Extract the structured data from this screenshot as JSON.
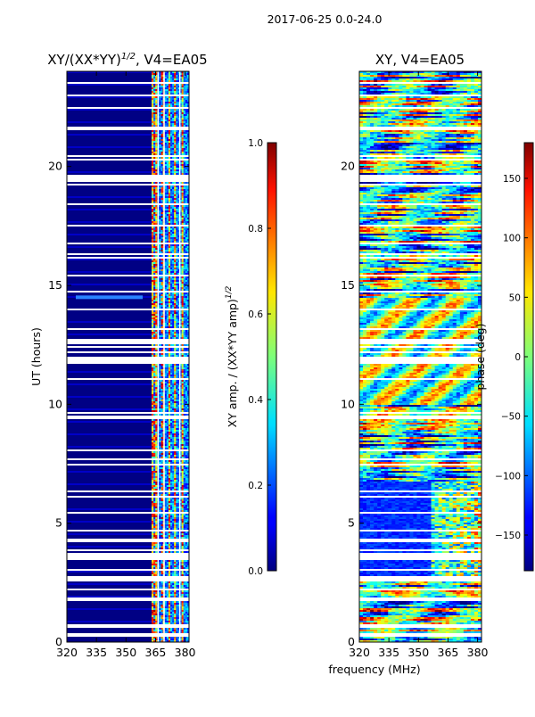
{
  "figure": {
    "suptitle": "2017-06-25 0.0-24.0",
    "xlabel": "frequency (MHz)"
  },
  "chart_data": [
    {
      "type": "heatmap",
      "title": "XY/(XX*YY)",
      "title_superscript": "1/2",
      "title_suffix": ", V4=EA05",
      "xlabel": "frequency (MHz)",
      "ylabel": "UT (hours)",
      "xlim": [
        320,
        382
      ],
      "ylim": [
        0,
        24
      ],
      "xticks": [
        320,
        335,
        350,
        365,
        380
      ],
      "yticks": [
        0,
        5,
        10,
        15,
        20
      ],
      "colorbar": {
        "label": "XY amp. / (XX*YY amp)",
        "label_superscript": "1/2",
        "range": [
          0.0,
          1.0
        ],
        "ticks": [
          "0.0",
          "0.2",
          "0.4",
          "0.6",
          "0.8",
          "1.0"
        ],
        "colormap": "jet"
      }
    },
    {
      "type": "heatmap",
      "title": "XY, V4=EA05",
      "xlabel": "frequency (MHz)",
      "ylabel": "",
      "xlim": [
        320,
        382
      ],
      "ylim": [
        0,
        24
      ],
      "xticks": [
        320,
        335,
        350,
        365,
        380
      ],
      "yticks": [
        0,
        5,
        10,
        15,
        20
      ],
      "colorbar": {
        "label": "phase (deg)",
        "range": [
          -180,
          180
        ],
        "ticks": [
          "−150",
          "−100",
          "−50",
          "0",
          "50",
          "100",
          "150"
        ],
        "colormap": "jet"
      }
    }
  ]
}
